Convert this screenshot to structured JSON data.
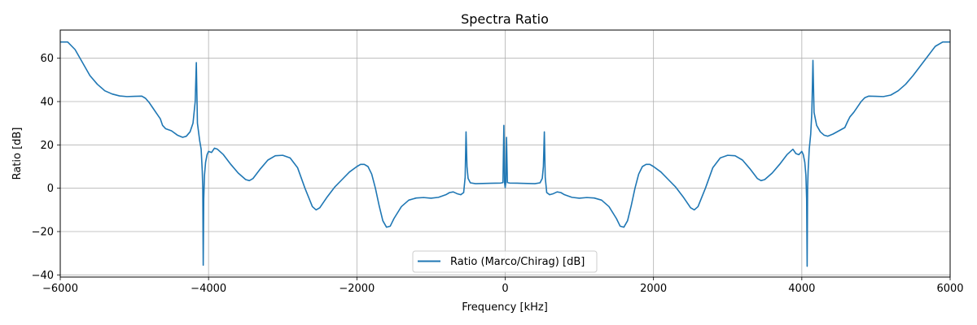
{
  "chart_data": {
    "type": "line",
    "title": "Spectra Ratio",
    "xlabel": "Frequency [kHz]",
    "ylabel": "Ratio [dB]",
    "xlim": [
      -6000,
      6000
    ],
    "ylim": [
      -41,
      73
    ],
    "xticks": [
      -6000,
      -4000,
      -2000,
      0,
      2000,
      4000,
      6000
    ],
    "xtick_labels": [
      "−6000",
      "−4000",
      "−2000",
      "0",
      "2000",
      "4000",
      "6000"
    ],
    "yticks": [
      -40,
      -20,
      0,
      20,
      40,
      60
    ],
    "ytick_labels": [
      "−40",
      "−20",
      "0",
      "20",
      "40",
      "60"
    ],
    "grid": true,
    "legend_position": "lower center",
    "series": [
      {
        "name": "Ratio (Marco/Chirag) [dB]",
        "color": "#1f77b4",
        "points": [
          [
            -6000,
            67.5
          ],
          [
            -5900,
            67.5
          ],
          [
            -5800,
            64
          ],
          [
            -5700,
            58
          ],
          [
            -5600,
            52
          ],
          [
            -5500,
            48
          ],
          [
            -5400,
            45
          ],
          [
            -5300,
            43.5
          ],
          [
            -5200,
            42.6
          ],
          [
            -5100,
            42.3
          ],
          [
            -5000,
            42.4
          ],
          [
            -4900,
            42.5
          ],
          [
            -4850,
            41.5
          ],
          [
            -4800,
            39.5
          ],
          [
            -4750,
            37
          ],
          [
            -4700,
            34.5
          ],
          [
            -4650,
            32
          ],
          [
            -4620,
            29
          ],
          [
            -4580,
            27.5
          ],
          [
            -4500,
            26.5
          ],
          [
            -4420,
            24.5
          ],
          [
            -4350,
            23.5
          ],
          [
            -4300,
            24
          ],
          [
            -4250,
            26
          ],
          [
            -4210,
            30
          ],
          [
            -4180,
            40
          ],
          [
            -4165,
            58
          ],
          [
            -4150,
            30
          ],
          [
            -4120,
            22
          ],
          [
            -4100,
            18
          ],
          [
            -4085,
            8
          ],
          [
            -4078,
            0
          ],
          [
            -4072,
            -35.5
          ],
          [
            -4065,
            -5
          ],
          [
            -4055,
            6
          ],
          [
            -4040,
            12
          ],
          [
            -4020,
            15.5
          ],
          [
            -4000,
            17
          ],
          [
            -3960,
            16.5
          ],
          [
            -3920,
            18.5
          ],
          [
            -3880,
            18
          ],
          [
            -3800,
            15.5
          ],
          [
            -3700,
            11
          ],
          [
            -3600,
            7
          ],
          [
            -3500,
            4
          ],
          [
            -3450,
            3.5
          ],
          [
            -3400,
            4.5
          ],
          [
            -3300,
            9
          ],
          [
            -3200,
            13
          ],
          [
            -3100,
            15
          ],
          [
            -3000,
            15.2
          ],
          [
            -2900,
            14
          ],
          [
            -2800,
            9.5
          ],
          [
            -2700,
            0
          ],
          [
            -2600,
            -8.5
          ],
          [
            -2550,
            -10
          ],
          [
            -2500,
            -9
          ],
          [
            -2400,
            -4
          ],
          [
            -2300,
            0.5
          ],
          [
            -2200,
            4
          ],
          [
            -2100,
            7.5
          ],
          [
            -2000,
            10
          ],
          [
            -1950,
            11
          ],
          [
            -1900,
            11
          ],
          [
            -1850,
            10
          ],
          [
            -1800,
            6.5
          ],
          [
            -1750,
            0
          ],
          [
            -1700,
            -8
          ],
          [
            -1650,
            -15
          ],
          [
            -1600,
            -18
          ],
          [
            -1550,
            -17.5
          ],
          [
            -1500,
            -14
          ],
          [
            -1400,
            -8.5
          ],
          [
            -1300,
            -5.5
          ],
          [
            -1200,
            -4.5
          ],
          [
            -1100,
            -4.3
          ],
          [
            -1000,
            -4.6
          ],
          [
            -900,
            -4.2
          ],
          [
            -800,
            -3
          ],
          [
            -750,
            -2
          ],
          [
            -700,
            -1.7
          ],
          [
            -650,
            -2.5
          ],
          [
            -600,
            -3
          ],
          [
            -560,
            -2
          ],
          [
            -540,
            5
          ],
          [
            -528,
            26
          ],
          [
            -515,
            10
          ],
          [
            -500,
            4.5
          ],
          [
            -470,
            2.5
          ],
          [
            -400,
            2.1
          ],
          [
            -200,
            2.3
          ],
          [
            -60,
            2.4
          ],
          [
            -30,
            2.6
          ],
          [
            -18,
            29
          ],
          [
            -8,
            2.5
          ],
          [
            0,
            0.3
          ],
          [
            8,
            2.5
          ],
          [
            18,
            23.5
          ],
          [
            30,
            2.6
          ],
          [
            60,
            2.4
          ],
          [
            200,
            2.3
          ],
          [
            400,
            2.1
          ],
          [
            470,
            2.5
          ],
          [
            500,
            4.5
          ],
          [
            515,
            10
          ],
          [
            528,
            26
          ],
          [
            540,
            5
          ],
          [
            560,
            -2
          ],
          [
            600,
            -3
          ],
          [
            650,
            -2.5
          ],
          [
            700,
            -1.7
          ],
          [
            750,
            -2
          ],
          [
            800,
            -3
          ],
          [
            900,
            -4.2
          ],
          [
            1000,
            -4.6
          ],
          [
            1100,
            -4.3
          ],
          [
            1200,
            -4.5
          ],
          [
            1300,
            -5.5
          ],
          [
            1400,
            -8.5
          ],
          [
            1500,
            -14
          ],
          [
            1550,
            -17.5
          ],
          [
            1600,
            -18
          ],
          [
            1650,
            -15
          ],
          [
            1700,
            -8
          ],
          [
            1750,
            0
          ],
          [
            1800,
            6.5
          ],
          [
            1850,
            10
          ],
          [
            1900,
            11
          ],
          [
            1950,
            11
          ],
          [
            2000,
            10
          ],
          [
            2100,
            7.5
          ],
          [
            2200,
            4
          ],
          [
            2300,
            0.5
          ],
          [
            2400,
            -4
          ],
          [
            2500,
            -9
          ],
          [
            2550,
            -10
          ],
          [
            2600,
            -8.5
          ],
          [
            2700,
            0
          ],
          [
            2800,
            9.5
          ],
          [
            2900,
            14
          ],
          [
            3000,
            15.2
          ],
          [
            3100,
            15
          ],
          [
            3200,
            13
          ],
          [
            3300,
            9
          ],
          [
            3400,
            4.5
          ],
          [
            3450,
            3.5
          ],
          [
            3500,
            4
          ],
          [
            3600,
            7
          ],
          [
            3700,
            11
          ],
          [
            3800,
            15.5
          ],
          [
            3880,
            18
          ],
          [
            3920,
            16
          ],
          [
            3960,
            15.5
          ],
          [
            4000,
            17
          ],
          [
            4020,
            15.5
          ],
          [
            4040,
            12
          ],
          [
            4055,
            6
          ],
          [
            4065,
            -5
          ],
          [
            4072,
            -36
          ],
          [
            4078,
            0
          ],
          [
            4085,
            8
          ],
          [
            4100,
            18
          ],
          [
            4120,
            25
          ],
          [
            4135,
            35
          ],
          [
            4150,
            59
          ],
          [
            4165,
            35
          ],
          [
            4200,
            29
          ],
          [
            4250,
            26
          ],
          [
            4300,
            24.5
          ],
          [
            4350,
            24
          ],
          [
            4420,
            25
          ],
          [
            4500,
            26.5
          ],
          [
            4580,
            28
          ],
          [
            4620,
            31
          ],
          [
            4650,
            33
          ],
          [
            4700,
            35
          ],
          [
            4750,
            37.5
          ],
          [
            4800,
            40
          ],
          [
            4850,
            41.8
          ],
          [
            4900,
            42.5
          ],
          [
            5000,
            42.4
          ],
          [
            5100,
            42.3
          ],
          [
            5200,
            43
          ],
          [
            5300,
            45
          ],
          [
            5400,
            48
          ],
          [
            5500,
            52
          ],
          [
            5600,
            56.5
          ],
          [
            5700,
            61
          ],
          [
            5800,
            65.5
          ],
          [
            5900,
            67.5
          ],
          [
            6000,
            67.5
          ]
        ]
      }
    ]
  }
}
